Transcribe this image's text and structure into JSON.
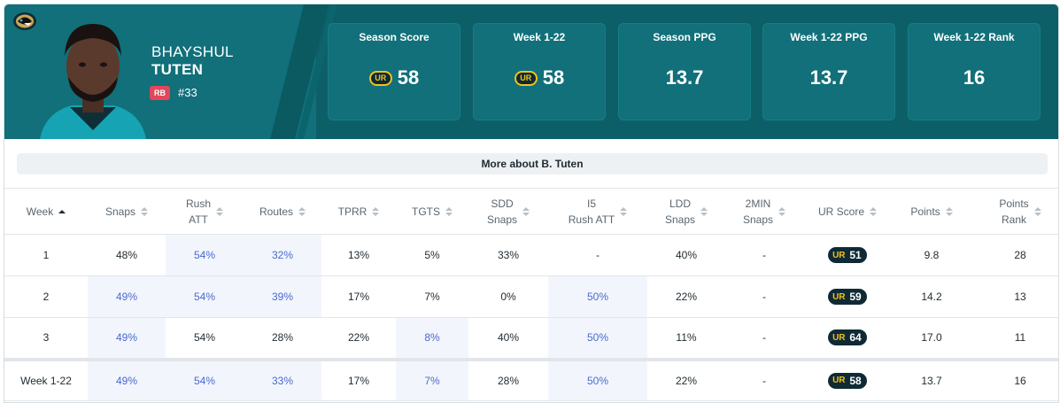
{
  "player": {
    "first_name": "BHAYSHUL",
    "last_name": "TUTEN",
    "position": "RB",
    "jersey": "#33",
    "team_logo_icon": "jaguars-logo-icon"
  },
  "stats": [
    {
      "label": "Season Score",
      "value": "58",
      "has_ur_logo": true
    },
    {
      "label": "Week 1-22",
      "value": "58",
      "has_ur_logo": true
    },
    {
      "label": "Season PPG",
      "value": "13.7",
      "has_ur_logo": false
    },
    {
      "label": "Week 1-22 PPG",
      "value": "13.7",
      "has_ur_logo": false
    },
    {
      "label": "Week 1-22 Rank",
      "value": "16",
      "has_ur_logo": false
    }
  ],
  "ur_logo_text": "UR",
  "more_button": "More about B. Tuten",
  "table": {
    "headers": [
      [
        "Week"
      ],
      [
        "Snaps"
      ],
      [
        "Rush",
        "ATT"
      ],
      [
        "Routes"
      ],
      [
        "TPRR"
      ],
      [
        "TGTS"
      ],
      [
        "SDD",
        "Snaps"
      ],
      [
        "I5",
        "Rush ATT"
      ],
      [
        "LDD",
        "Snaps"
      ],
      [
        "2MIN",
        "Snaps"
      ],
      [
        "UR Score"
      ],
      [
        "Points"
      ],
      [
        "Points",
        "Rank"
      ]
    ],
    "rows": [
      {
        "cells": [
          "1",
          "48%",
          "54%",
          "32%",
          "13%",
          "5%",
          "33%",
          "-",
          "40%",
          "-",
          "51",
          "9.8",
          "28"
        ],
        "highlight": [
          2,
          3
        ]
      },
      {
        "cells": [
          "2",
          "49%",
          "54%",
          "39%",
          "17%",
          "7%",
          "0%",
          "50%",
          "22%",
          "-",
          "59",
          "14.2",
          "13"
        ],
        "highlight": [
          1,
          2,
          3,
          7
        ]
      },
      {
        "cells": [
          "3",
          "49%",
          "54%",
          "28%",
          "22%",
          "8%",
          "40%",
          "50%",
          "11%",
          "-",
          "64",
          "17.0",
          "11"
        ],
        "highlight": [
          1,
          5,
          7
        ]
      },
      {
        "cells": [
          "Week 1-22",
          "49%",
          "54%",
          "33%",
          "17%",
          "7%",
          "28%",
          "50%",
          "22%",
          "-",
          "58",
          "13.7",
          "16"
        ],
        "highlight": [
          1,
          2,
          3,
          5,
          7
        ],
        "total": true
      }
    ]
  },
  "colors": {
    "header_bg": "#0e6a73",
    "accent_blue": "#4a68d0",
    "highlight_bg": "#f2f6fc",
    "badge_red": "#e0475b",
    "ur_gold": "#f2c21a"
  }
}
